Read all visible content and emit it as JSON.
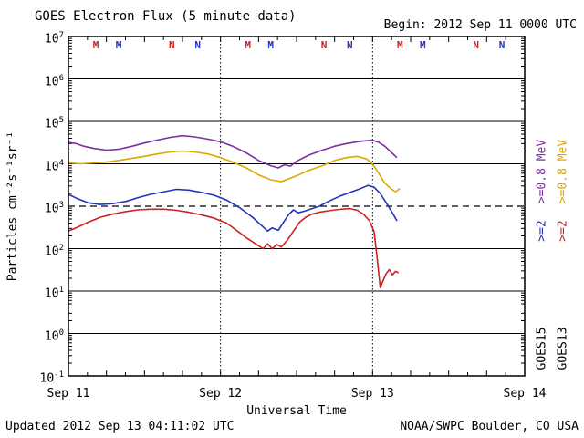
{
  "title": "GOES Electron Flux (5 minute data)",
  "begin_label": "Begin: 2012 Sep 11 0000 UTC",
  "updated_label": "Updated 2012 Sep 13 04:11:02 UTC",
  "credit_label": "NOAA/SWPC Boulder, CO USA",
  "axes": {
    "x_label": "Universal Time",
    "y_label": "Particles cm⁻²s⁻¹sr⁻¹",
    "x_ticks": [
      "Sep 11",
      "Sep 12",
      "Sep 13",
      "Sep 14"
    ],
    "y_tick_exponents": [
      7,
      6,
      5,
      4,
      3,
      2,
      1,
      0,
      -1
    ]
  },
  "legend": {
    "goes15": {
      "satellite": "GOES15",
      "e08_label": ">=0.8 MeV",
      "e2_label": ">=2",
      "e08_color": "#7b2fa0",
      "e2_color": "#2233bb"
    },
    "goes13": {
      "satellite": "GOES13",
      "e08_label": ">=0.8 MeV",
      "e2_label": ">=2",
      "e08_color": "#dba800",
      "e2_color": "#cc2222"
    }
  },
  "event_markers": [
    {
      "t": 0.18,
      "label": "M",
      "satellite": "GOES13",
      "color": "#cc2222"
    },
    {
      "t": 0.33,
      "label": "M",
      "satellite": "GOES15",
      "color": "#2233bb"
    },
    {
      "t": 0.68,
      "label": "N",
      "satellite": "GOES13",
      "color": "#cc2222"
    },
    {
      "t": 0.85,
      "label": "N",
      "satellite": "GOES15",
      "color": "#2233bb"
    },
    {
      "t": 1.18,
      "label": "M",
      "satellite": "GOES13",
      "color": "#cc2222"
    },
    {
      "t": 1.33,
      "label": "M",
      "satellite": "GOES15",
      "color": "#2233bb"
    },
    {
      "t": 1.68,
      "label": "N",
      "satellite": "GOES13",
      "color": "#cc2222"
    },
    {
      "t": 1.85,
      "label": "N",
      "satellite": "GOES15",
      "color": "#2233bb"
    },
    {
      "t": 2.18,
      "label": "M",
      "satellite": "GOES13",
      "color": "#cc2222"
    },
    {
      "t": 2.33,
      "label": "M",
      "satellite": "GOES15",
      "color": "#2233bb"
    },
    {
      "t": 2.68,
      "label": "N",
      "satellite": "GOES13",
      "color": "#cc2222"
    },
    {
      "t": 2.85,
      "label": "N",
      "satellite": "GOES15",
      "color": "#2233bb"
    }
  ],
  "chart_data": {
    "type": "line",
    "title": "GOES Electron Flux (5 minute data)",
    "xlabel": "Universal Time",
    "ylabel": "Particles cm⁻²s⁻¹sr⁻¹",
    "x_unit": "days since 2012 Sep 11 0000 UTC",
    "x_range_days": [
      0,
      3
    ],
    "y_log_range": [
      -1,
      7
    ],
    "y_scale": "log10",
    "threshold": 1000,
    "grid": "solid horizontal decade lines, dotted vertical day boundaries, dashed alert line at 1e3",
    "series": [
      {
        "id": "goes13_e08",
        "name": "GOES13 >=0.8 MeV",
        "color": "#dba800",
        "points": [
          [
            0.0,
            10500
          ],
          [
            0.08,
            10000
          ],
          [
            0.17,
            10500
          ],
          [
            0.25,
            11000
          ],
          [
            0.33,
            12000
          ],
          [
            0.42,
            13500
          ],
          [
            0.5,
            15000
          ],
          [
            0.58,
            17000
          ],
          [
            0.67,
            19000
          ],
          [
            0.75,
            20000
          ],
          [
            0.83,
            19000
          ],
          [
            0.92,
            17000
          ],
          [
            1.0,
            14000
          ],
          [
            1.08,
            11000
          ],
          [
            1.17,
            8000
          ],
          [
            1.25,
            5500
          ],
          [
            1.33,
            4200
          ],
          [
            1.4,
            3800
          ],
          [
            1.46,
            4600
          ],
          [
            1.52,
            5600
          ],
          [
            1.58,
            7000
          ],
          [
            1.67,
            9000
          ],
          [
            1.75,
            12000
          ],
          [
            1.83,
            14000
          ],
          [
            1.9,
            15000
          ],
          [
            1.96,
            13000
          ],
          [
            2.0,
            10000
          ],
          [
            2.04,
            6000
          ],
          [
            2.08,
            3500
          ],
          [
            2.12,
            2600
          ],
          [
            2.15,
            2200
          ],
          [
            2.18,
            2600
          ]
        ]
      },
      {
        "id": "goes15_e08",
        "name": "GOES15 >=0.8 MeV",
        "color": "#7b2fa0",
        "points": [
          [
            0.0,
            32000
          ],
          [
            0.05,
            30000
          ],
          [
            0.1,
            26000
          ],
          [
            0.17,
            23000
          ],
          [
            0.25,
            21000
          ],
          [
            0.33,
            22000
          ],
          [
            0.42,
            26000
          ],
          [
            0.5,
            31000
          ],
          [
            0.58,
            36000
          ],
          [
            0.67,
            42000
          ],
          [
            0.75,
            46000
          ],
          [
            0.83,
            43000
          ],
          [
            0.92,
            38000
          ],
          [
            1.0,
            33000
          ],
          [
            1.08,
            26000
          ],
          [
            1.17,
            18000
          ],
          [
            1.25,
            12000
          ],
          [
            1.33,
            9000
          ],
          [
            1.38,
            8000
          ],
          [
            1.42,
            9500
          ],
          [
            1.46,
            8800
          ],
          [
            1.5,
            11500
          ],
          [
            1.58,
            16000
          ],
          [
            1.67,
            21000
          ],
          [
            1.75,
            26000
          ],
          [
            1.83,
            30000
          ],
          [
            1.92,
            34000
          ],
          [
            2.0,
            36000
          ],
          [
            2.04,
            32000
          ],
          [
            2.08,
            26000
          ],
          [
            2.12,
            19000
          ],
          [
            2.16,
            14000
          ]
        ]
      },
      {
        "id": "goes13_e2",
        "name": "GOES13 >=2 MeV",
        "color": "#cc2222",
        "points": [
          [
            0.0,
            260
          ],
          [
            0.06,
            320
          ],
          [
            0.13,
            420
          ],
          [
            0.21,
            550
          ],
          [
            0.29,
            650
          ],
          [
            0.38,
            750
          ],
          [
            0.46,
            820
          ],
          [
            0.54,
            850
          ],
          [
            0.63,
            850
          ],
          [
            0.71,
            800
          ],
          [
            0.79,
            720
          ],
          [
            0.88,
            620
          ],
          [
            0.96,
            520
          ],
          [
            1.04,
            400
          ],
          [
            1.1,
            280
          ],
          [
            1.17,
            180
          ],
          [
            1.23,
            130
          ],
          [
            1.28,
            100
          ],
          [
            1.31,
            130
          ],
          [
            1.34,
            100
          ],
          [
            1.37,
            125
          ],
          [
            1.4,
            110
          ],
          [
            1.44,
            160
          ],
          [
            1.48,
            260
          ],
          [
            1.52,
            420
          ],
          [
            1.56,
            550
          ],
          [
            1.6,
            650
          ],
          [
            1.65,
            720
          ],
          [
            1.71,
            780
          ],
          [
            1.78,
            840
          ],
          [
            1.85,
            880
          ],
          [
            1.9,
            800
          ],
          [
            1.94,
            650
          ],
          [
            1.98,
            450
          ],
          [
            2.01,
            250
          ],
          [
            2.03,
            60
          ],
          [
            2.05,
            12
          ],
          [
            2.07,
            18
          ],
          [
            2.09,
            26
          ],
          [
            2.11,
            32
          ],
          [
            2.13,
            24
          ],
          [
            2.15,
            29
          ],
          [
            2.17,
            27
          ]
        ]
      },
      {
        "id": "goes15_e2",
        "name": "GOES15 >=2 MeV",
        "color": "#2233bb",
        "points": [
          [
            0.0,
            1900
          ],
          [
            0.06,
            1500
          ],
          [
            0.13,
            1200
          ],
          [
            0.21,
            1100
          ],
          [
            0.29,
            1150
          ],
          [
            0.38,
            1300
          ],
          [
            0.46,
            1600
          ],
          [
            0.54,
            1900
          ],
          [
            0.63,
            2200
          ],
          [
            0.71,
            2500
          ],
          [
            0.79,
            2400
          ],
          [
            0.88,
            2100
          ],
          [
            0.96,
            1800
          ],
          [
            1.04,
            1400
          ],
          [
            1.13,
            900
          ],
          [
            1.21,
            550
          ],
          [
            1.27,
            350
          ],
          [
            1.31,
            260
          ],
          [
            1.34,
            310
          ],
          [
            1.38,
            270
          ],
          [
            1.42,
            450
          ],
          [
            1.45,
            650
          ],
          [
            1.48,
            820
          ],
          [
            1.51,
            700
          ],
          [
            1.55,
            760
          ],
          [
            1.6,
            870
          ],
          [
            1.65,
            1000
          ],
          [
            1.71,
            1300
          ],
          [
            1.78,
            1700
          ],
          [
            1.85,
            2100
          ],
          [
            1.92,
            2600
          ],
          [
            1.97,
            3100
          ],
          [
            2.01,
            2800
          ],
          [
            2.05,
            2000
          ],
          [
            2.09,
            1200
          ],
          [
            2.13,
            700
          ],
          [
            2.16,
            450
          ]
        ]
      }
    ]
  }
}
